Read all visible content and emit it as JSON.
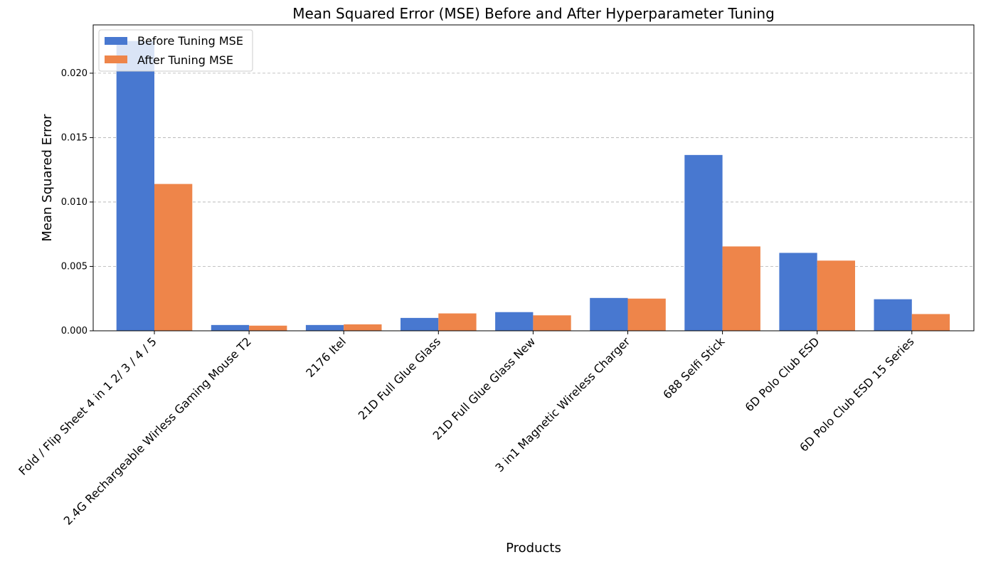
{
  "chart_data": {
    "type": "bar",
    "title": "Mean Squared Error (MSE) Before and After Hyperparameter Tuning",
    "xlabel": "Products",
    "ylabel": "Mean Squared Error",
    "categories": [
      "Fold / Flip Sheet 4 in 1 2/ 3 / 4 / 5",
      "2.4G Rechargeable Wirless Gaming Mouse T2",
      "2176 Itel",
      "21D Full Glue Glass",
      "21D Full Glue Glass New",
      "3 in1 Magnetic Wireless Charger",
      "688 Selfi Stick",
      "6D Polo Club ESD",
      "6D Polo Club ESD 15 Series"
    ],
    "series": [
      {
        "name": "Before Tuning MSE",
        "color": "#4878d0",
        "values": [
          0.0225,
          0.00045,
          0.00045,
          0.001,
          0.00145,
          0.00255,
          0.01365,
          0.00605,
          0.00245
        ]
      },
      {
        "name": "After Tuning MSE",
        "color": "#ee854a",
        "values": [
          0.0114,
          0.0004,
          0.0005,
          0.00135,
          0.0012,
          0.0025,
          0.00655,
          0.00545,
          0.0013
        ]
      }
    ],
    "ylim": [
      0,
      0.02375
    ],
    "yticks": [
      "0.000",
      "0.005",
      "0.010",
      "0.015",
      "0.020"
    ],
    "ytick_values": [
      0,
      0.005,
      0.01,
      0.015,
      0.02
    ],
    "grid": "y-dashed",
    "legend_position": "top-left"
  }
}
